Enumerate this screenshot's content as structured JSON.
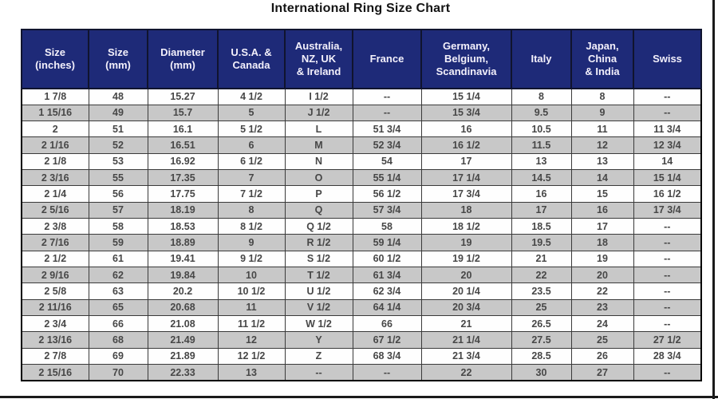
{
  "page": {
    "title": "International Ring Size Chart"
  },
  "colors": {
    "header_bg": "#1e2a78",
    "header_text": "#f3f0fb",
    "row_white": "#fefefe",
    "row_gray": "#c8c8c8",
    "cell_border": "#3a3a3a",
    "frame_line": "#1a1a1a",
    "data_text": "#474747",
    "title_text": "#141414"
  },
  "chart_data": {
    "type": "table",
    "title": "International Ring Size Chart",
    "columns": [
      "Size\n(inches)",
      "Size\n(mm)",
      "Diameter\n(mm)",
      "U.S.A. &\nCanada",
      "Australia,\nNZ, UK\n& Ireland",
      "France",
      "Germany,\nBelgium,\nScandinavia",
      "Italy",
      "Japan,\nChina\n& India",
      "Swiss"
    ],
    "rows": [
      [
        "1 7/8",
        "48",
        "15.27",
        "4 1/2",
        "I 1/2",
        "--",
        "15 1/4",
        "8",
        "8",
        "--"
      ],
      [
        "1 15/16",
        "49",
        "15.7",
        "5",
        "J 1/2",
        "--",
        "15 3/4",
        "9.5",
        "9",
        "--"
      ],
      [
        "2",
        "51",
        "16.1",
        "5 1/2",
        "L",
        "51 3/4",
        "16",
        "10.5",
        "11",
        "11 3/4"
      ],
      [
        "2 1/16",
        "52",
        "16.51",
        "6",
        "M",
        "52 3/4",
        "16 1/2",
        "11.5",
        "12",
        "12 3/4"
      ],
      [
        "2 1/8",
        "53",
        "16.92",
        "6 1/2",
        "N",
        "54",
        "17",
        "13",
        "13",
        "14"
      ],
      [
        "2 3/16",
        "55",
        "17.35",
        "7",
        "O",
        "55 1/4",
        "17 1/4",
        "14.5",
        "14",
        "15 1/4"
      ],
      [
        "2 1/4",
        "56",
        "17.75",
        "7 1/2",
        "P",
        "56 1/2",
        "17 3/4",
        "16",
        "15",
        "16 1/2"
      ],
      [
        "2 5/16",
        "57",
        "18.19",
        "8",
        "Q",
        "57 3/4",
        "18",
        "17",
        "16",
        "17 3/4"
      ],
      [
        "2 3/8",
        "58",
        "18.53",
        "8 1/2",
        "Q 1/2",
        "58",
        "18 1/2",
        "18.5",
        "17",
        "--"
      ],
      [
        "2 7/16",
        "59",
        "18.89",
        "9",
        "R 1/2",
        "59 1/4",
        "19",
        "19.5",
        "18",
        "--"
      ],
      [
        "2 1/2",
        "61",
        "19.41",
        "9 1/2",
        "S 1/2",
        "60 1/2",
        "19 1/2",
        "21",
        "19",
        "--"
      ],
      [
        "2 9/16",
        "62",
        "19.84",
        "10",
        "T 1/2",
        "61 3/4",
        "20",
        "22",
        "20",
        "--"
      ],
      [
        "2 5/8",
        "63",
        "20.2",
        "10 1/2",
        "U 1/2",
        "62 3/4",
        "20 1/4",
        "23.5",
        "22",
        "--"
      ],
      [
        "2 11/16",
        "65",
        "20.68",
        "11",
        "V 1/2",
        "64 1/4",
        "20 3/4",
        "25",
        "23",
        "--"
      ],
      [
        "2 3/4",
        "66",
        "21.08",
        "11 1/2",
        "W 1/2",
        "66",
        "21",
        "26.5",
        "24",
        "--"
      ],
      [
        "2 13/16",
        "68",
        "21.49",
        "12",
        "Y",
        "67 1/2",
        "21 1/4",
        "27.5",
        "25",
        "27 1/2"
      ],
      [
        "2 7/8",
        "69",
        "21.89",
        "12 1/2",
        "Z",
        "68 3/4",
        "21 3/4",
        "28.5",
        "26",
        "28 3/4"
      ],
      [
        "2 15/16",
        "70",
        "22.33",
        "13",
        "--",
        "--",
        "22",
        "30",
        "27",
        "--"
      ]
    ]
  }
}
